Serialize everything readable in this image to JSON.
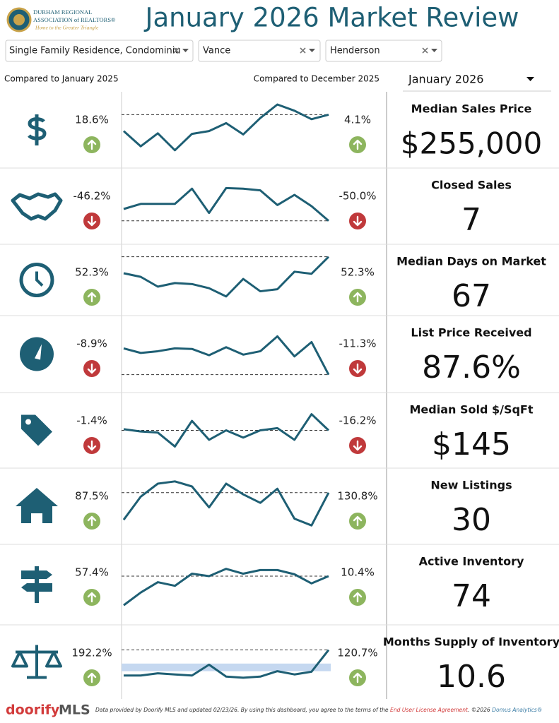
{
  "header": {
    "logo_line1": "DURHAM REGIONAL",
    "logo_line2": "ASSOCIATION of REALTORS®",
    "logo_tagline": "Home to the Greater Triangle",
    "title": "January 2026 Market Review"
  },
  "filters": [
    "Single Family Residence, Condominiu",
    "Vance",
    "Henderson"
  ],
  "comparisons": {
    "left": "Compared to January 2025",
    "right": "Compared to December 2025",
    "period": "January 2026"
  },
  "metrics": [
    {
      "label": "Median Sales Price",
      "value": "$255,000",
      "yoy": "18.6%",
      "yoy_dir": "up",
      "mom": "4.1%",
      "mom_dir": "up",
      "icon": "dollar",
      "trend": {
        "ylim": [
          0,
          100
        ],
        "values": [
          48,
          21,
          44,
          14,
          43,
          48,
          62,
          42,
          71,
          95,
          84,
          69,
          77
        ]
      }
    },
    {
      "label": "Closed Sales",
      "value": "7",
      "yoy": "-46.2%",
      "yoy_dir": "down",
      "mom": "-50.0%",
      "mom_dir": "down",
      "icon": "handshake",
      "trend": {
        "ylim": [
          0,
          100
        ],
        "values": [
          45,
          54,
          54,
          54,
          81,
          38,
          82,
          81,
          78,
          52,
          70,
          50,
          24
        ]
      }
    },
    {
      "label": "Median Days on Market",
      "value": "67",
      "yoy": "52.3%",
      "yoy_dir": "up",
      "mom": "52.3%",
      "mom_dir": "up",
      "icon": "clock",
      "trend": {
        "ylim": [
          0,
          100
        ],
        "values": [
          63,
          56,
          37,
          44,
          42,
          34,
          18,
          52,
          28,
          32,
          66,
          62,
          95
        ]
      }
    },
    {
      "label": "List Price Received",
      "value": "87.6%",
      "yoy": "-8.9%",
      "yoy_dir": "down",
      "mom": "-11.3%",
      "mom_dir": "down",
      "icon": "gauge",
      "trend": {
        "ylim": [
          0,
          100
        ],
        "values": [
          60,
          52,
          55,
          60,
          59,
          48,
          62,
          49,
          55,
          81,
          46,
          71,
          14
        ]
      }
    },
    {
      "label": "Median Sold $/SqFt",
      "value": "$145",
      "yoy": "-1.4%",
      "yoy_dir": "down",
      "mom": "-16.2%",
      "mom_dir": "down",
      "icon": "tag",
      "trend": {
        "ylim": [
          0,
          100
        ],
        "values": [
          52,
          48,
          46,
          21,
          67,
          33,
          50,
          37,
          50,
          54,
          33,
          79,
          50
        ]
      }
    },
    {
      "label": "New Listings",
      "value": "30",
      "yoy": "87.5%",
      "yoy_dir": "up",
      "mom": "130.8%",
      "mom_dir": "up",
      "icon": "house",
      "trend": {
        "ylim": [
          0,
          100
        ],
        "values": [
          26,
          67,
          90,
          94,
          85,
          48,
          90,
          71,
          56,
          81,
          28,
          16,
          74
        ]
      }
    },
    {
      "label": "Active Inventory",
      "value": "74",
      "yoy": "57.4%",
      "yoy_dir": "up",
      "mom": "10.4%",
      "mom_dir": "up",
      "icon": "sign",
      "trend": {
        "ylim": [
          0,
          100
        ],
        "values": [
          16,
          37,
          54,
          48,
          68,
          64,
          76,
          68,
          74,
          74,
          67,
          52,
          64
        ]
      }
    },
    {
      "label": "Months Supply of Inventory",
      "value": "10.6",
      "yoy": "192.2%",
      "yoy_dir": "up",
      "mom": "120.7%",
      "mom_dir": "up",
      "icon": "scale",
      "trend": {
        "ylim": [
          0,
          100
        ],
        "values": [
          25,
          25,
          29,
          27,
          25,
          45,
          23,
          21,
          23,
          33,
          27,
          32,
          72
        ],
        "band": [
          33,
          47
        ]
      }
    }
  ],
  "footer": {
    "brand1": "doorify",
    "brand2": "MLS",
    "text": "Data provided by Doorify MLS and updated 02/23/26.  By using this dashboard, you agree to the terms of the",
    "link": "End User License Agreement",
    "copyright": ". ©2026",
    "company": "Domus Analytics®"
  }
}
